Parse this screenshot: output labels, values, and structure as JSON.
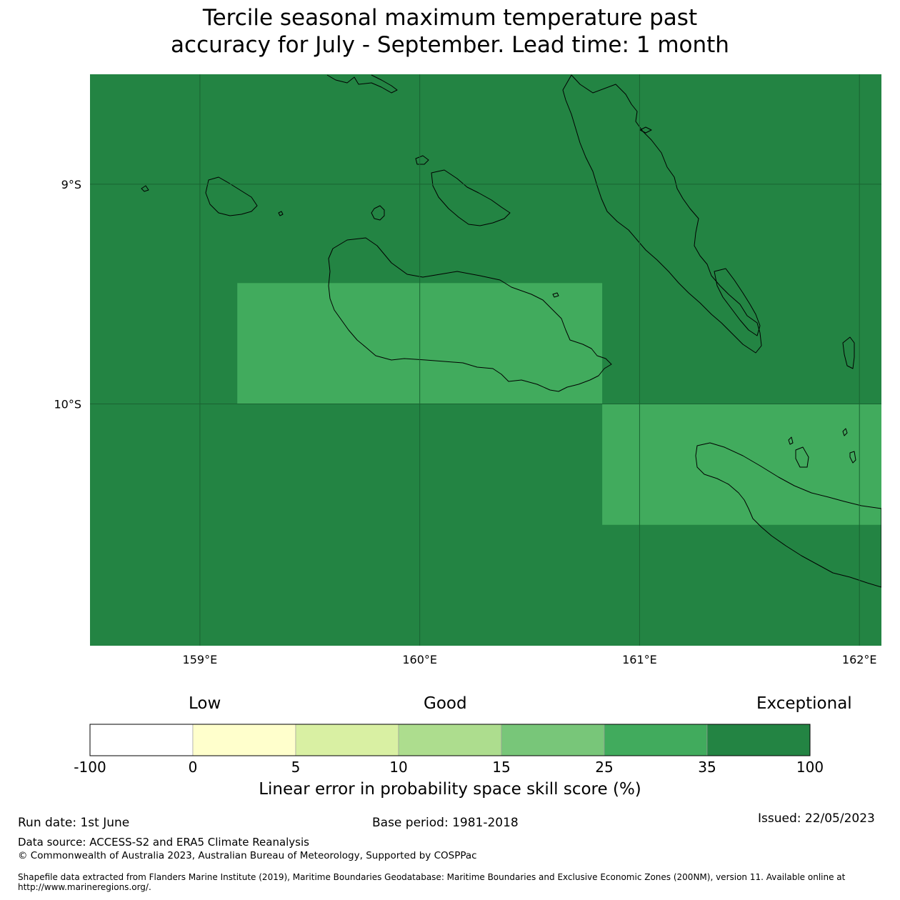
{
  "title": {
    "line1": "Tercile seasonal maximum temperature past",
    "line2": "accuracy for July - September. Lead time: 1 month"
  },
  "map": {
    "lon_range": [
      158.5,
      162.1
    ],
    "lat_range": [
      -8.5,
      -11.1
    ],
    "lon_ticks": [
      {
        "value": 159,
        "label": "159°E"
      },
      {
        "value": 160,
        "label": "160°E"
      },
      {
        "value": 161,
        "label": "161°E"
      },
      {
        "value": 162,
        "label": "162°E"
      }
    ],
    "lat_ticks": [
      {
        "value": -9,
        "label": "9°S"
      },
      {
        "value": -10,
        "label": "10°S"
      }
    ],
    "background_color": "#238443",
    "gridline_color": "#1a6332",
    "cells": [
      {
        "lon": [
          159.17,
          160.83
        ],
        "lat": [
          -9.45,
          -10.0
        ],
        "color": "#41ab5d",
        "class": "25 – 35"
      },
      {
        "lon": [
          160.83,
          162.1
        ],
        "lat": [
          -10.0,
          -10.55
        ],
        "color": "#41ab5d",
        "class": "25 – 35"
      }
    ]
  },
  "colorbar": {
    "categories": {
      "low": "Low",
      "good": "Good",
      "exceptional": "Exceptional"
    },
    "bins": [
      {
        "from": -100,
        "to": 0,
        "color": "#ffffff"
      },
      {
        "from": 0,
        "to": 5,
        "color": "#ffffcc"
      },
      {
        "from": 5,
        "to": 10,
        "color": "#d9f0a3"
      },
      {
        "from": 10,
        "to": 15,
        "color": "#addd8e"
      },
      {
        "from": 15,
        "to": 25,
        "color": "#78c679"
      },
      {
        "from": 25,
        "to": 35,
        "color": "#41ab5d"
      },
      {
        "from": 35,
        "to": 100,
        "color": "#238443"
      }
    ],
    "ticks": [
      "-100",
      "0",
      "5",
      "10",
      "15",
      "25",
      "35",
      "100"
    ],
    "label": "Linear error in probability space skill score (%)"
  },
  "footer": {
    "run_date": "Run date: 1st June",
    "base_period": "Base period: 1981-2018",
    "issued": "Issued: 22/05/2023",
    "data_source": "Data source: ACCESS-S2 and ERA5 Climate Reanalysis",
    "copyright": "© Commonwealth of Australia 2023, Australian Bureau of Meteorology, Supported by COSPPac",
    "shapefile": "Shapefile data extracted from Flanders Marine Institute (2019), Maritime Boundaries Geodatabase: Maritime Boundaries and Exclusive Economic Zones (200NM), version 11. Available online at http://www.marineregions.org/."
  }
}
